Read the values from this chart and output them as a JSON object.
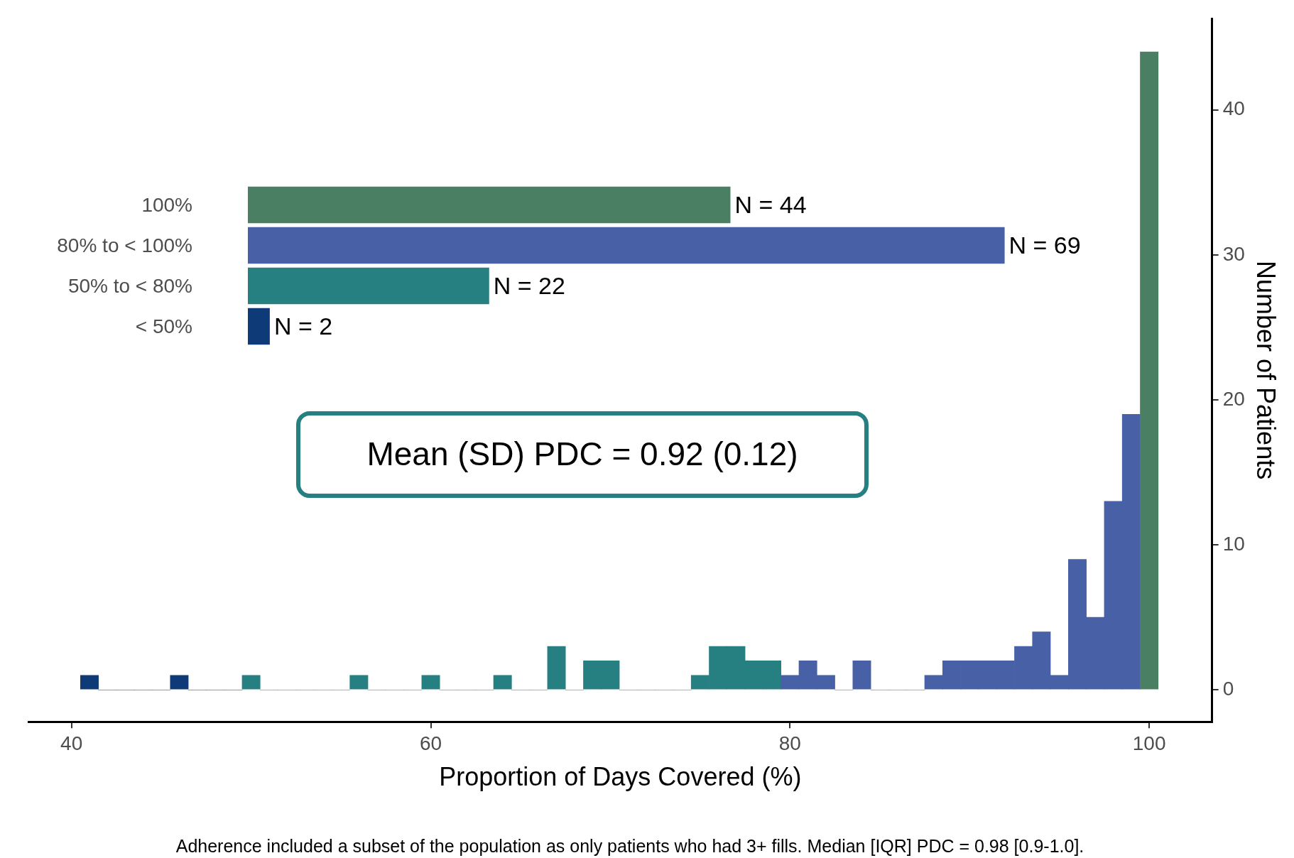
{
  "chart_data": [
    {
      "type": "histogram",
      "xlabel": "Proportion of Days Covered (%)",
      "ylabel": "Number of Patients",
      "bins": [
        40.5,
        41.5,
        42.5,
        43.5,
        44.5,
        45.5,
        46.5,
        47.5,
        48.5,
        49.5,
        50.5,
        51.5,
        52.5,
        53.5,
        54.5,
        55.5,
        56.5,
        57.5,
        58.5,
        59.5,
        60.5,
        61.5,
        62.5,
        63.5,
        64.5,
        65.5,
        66.5,
        67.5,
        68.5,
        69.5,
        70.5,
        71.5,
        72.5,
        73.5,
        74.5,
        75.5,
        76.5,
        77.5,
        78.5,
        79.5,
        80.5,
        81.5,
        82.5,
        83.5,
        84.5,
        85.5,
        86.5,
        87.5,
        88.5,
        89.5,
        90.5,
        91.5,
        92.5,
        93.5,
        94.5,
        95.5,
        96.5,
        97.5,
        98.5,
        99.5,
        100.5
      ],
      "values": [
        1,
        0,
        0,
        0,
        0,
        1,
        0,
        0,
        0,
        1,
        0,
        0,
        0,
        0,
        0,
        1,
        0,
        0,
        0,
        1,
        0,
        0,
        0,
        1,
        0,
        0,
        3,
        0,
        2,
        2,
        0,
        0,
        0,
        0,
        1,
        3,
        3,
        2,
        2,
        1,
        2,
        1,
        0,
        2,
        0,
        0,
        0,
        1,
        2,
        2,
        2,
        2,
        3,
        4,
        1,
        9,
        5,
        13,
        19,
        44
      ],
      "colors": [
        "#0e3b78",
        "#0e3b78",
        "#0e3b78",
        "#0e3b78",
        "#0e3b78",
        "#0e3b78",
        "#0e3b78",
        "#0e3b78",
        "#0e3b78",
        "#267f80",
        "#267f80",
        "#267f80",
        "#267f80",
        "#267f80",
        "#267f80",
        "#267f80",
        "#267f80",
        "#267f80",
        "#267f80",
        "#267f80",
        "#267f80",
        "#267f80",
        "#267f80",
        "#267f80",
        "#267f80",
        "#267f80",
        "#267f80",
        "#267f80",
        "#267f80",
        "#267f80",
        "#267f80",
        "#267f80",
        "#267f80",
        "#267f80",
        "#267f80",
        "#267f80",
        "#267f80",
        "#267f80",
        "#267f80",
        "#4760a6",
        "#4760a6",
        "#4760a6",
        "#4760a6",
        "#4760a6",
        "#4760a6",
        "#4760a6",
        "#4760a6",
        "#4760a6",
        "#4760a6",
        "#4760a6",
        "#4760a6",
        "#4760a6",
        "#4760a6",
        "#4760a6",
        "#4760a6",
        "#4760a6",
        "#4760a6",
        "#4760a6",
        "#4760a6",
        "#4a7f63"
      ],
      "xlim": [
        37.6,
        103.5
      ],
      "xticks": [
        40,
        60,
        80,
        100
      ],
      "ylim": [
        -2.2,
        46.3
      ],
      "yticks": [
        0,
        10,
        20,
        30,
        40
      ],
      "grid": false,
      "legend": false,
      "annotations": [
        "Mean (SD) PDC = 0.92 (0.12)",
        "Adherence included a subset of the population as only patients who had 3+ fills. Median [IQR] PDC = 0.98 [0.9-1.0]."
      ]
    },
    {
      "type": "bar",
      "orientation": "horizontal",
      "categories": [
        "100%",
        "80% to < 100%",
        "50% to < 80%",
        "< 50%"
      ],
      "values": [
        44,
        69,
        22,
        2
      ],
      "colors": [
        "#4a7f63",
        "#4760a6",
        "#267f80",
        "#0e3b78"
      ],
      "value_labels": [
        "N = 44",
        "N = 69",
        "N = 22",
        "N = 2"
      ],
      "legend": false,
      "grid": false
    }
  ]
}
